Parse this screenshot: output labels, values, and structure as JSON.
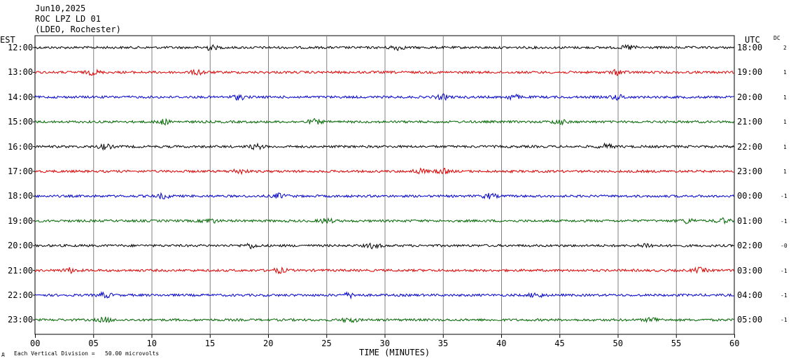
{
  "header": {
    "date": "Jun10,2025",
    "station": "ROC LPZ LD 01",
    "network": "(LDEO, Rochester)"
  },
  "left_axis_title": "EST",
  "right_axis_title": "UTC",
  "dc_title": "DC",
  "footer": {
    "prefix": "д",
    "scale_note": "Each Vertical Division =   50.00 microvolts"
  },
  "colors": {
    "black": "#000000",
    "red": "#dd0000",
    "blue": "#0000cc",
    "green": "#006600",
    "grid": "#808080"
  },
  "chart_data": {
    "type": "line",
    "xlabel": "TIME (MINUTES)",
    "xlim": [
      0,
      60
    ],
    "x_ticks": [
      "00",
      "05",
      "10",
      "15",
      "20",
      "25",
      "30",
      "35",
      "40",
      "45",
      "50",
      "55",
      "60"
    ],
    "series": [
      {
        "est": "12:00",
        "utc": "18:00",
        "dc": "2",
        "color": "black",
        "bursts": [
          15,
          31,
          51
        ]
      },
      {
        "est": "13:00",
        "utc": "19:00",
        "dc": "1",
        "color": "red",
        "bursts": [
          5,
          14,
          50
        ]
      },
      {
        "est": "14:00",
        "utc": "20:00",
        "dc": "1",
        "color": "blue",
        "bursts": [
          17.5,
          35,
          41,
          50
        ]
      },
      {
        "est": "15:00",
        "utc": "21:00",
        "dc": "1",
        "color": "green",
        "bursts": [
          11,
          24,
          45
        ]
      },
      {
        "est": "16:00",
        "utc": "22:00",
        "dc": "1",
        "color": "black",
        "bursts": [
          6,
          19,
          49
        ]
      },
      {
        "est": "17:00",
        "utc": "23:00",
        "dc": "1",
        "color": "red",
        "bursts": [
          17.5,
          33,
          35
        ]
      },
      {
        "est": "18:00",
        "utc": "00:00",
        "dc": "-1",
        "color": "blue",
        "bursts": [
          11,
          21,
          39
        ]
      },
      {
        "est": "19:00",
        "utc": "01:00",
        "dc": "-1",
        "color": "green",
        "bursts": [
          15,
          25,
          56,
          59
        ]
      },
      {
        "est": "20:00",
        "utc": "02:00",
        "dc": "-0",
        "color": "black",
        "bursts": [
          18.5,
          29,
          52.5
        ]
      },
      {
        "est": "21:00",
        "utc": "03:00",
        "dc": "-1",
        "color": "red",
        "bursts": [
          3,
          21,
          57
        ]
      },
      {
        "est": "22:00",
        "utc": "04:00",
        "dc": "-1",
        "color": "blue",
        "bursts": [
          6,
          27,
          43
        ]
      },
      {
        "est": "23:00",
        "utc": "05:00",
        "dc": "-1",
        "color": "green",
        "bursts": [
          6,
          27,
          53
        ]
      }
    ]
  }
}
